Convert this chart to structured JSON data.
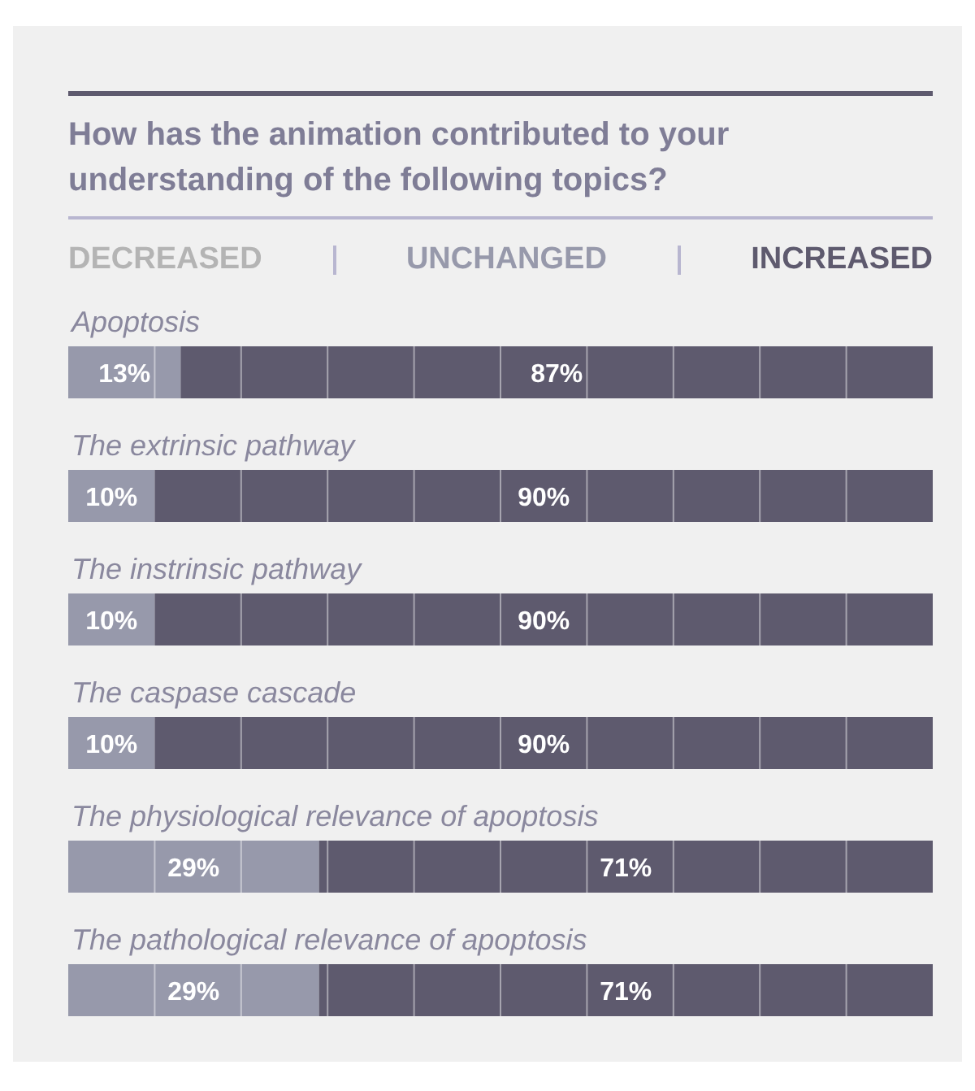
{
  "chart_data": {
    "type": "bar",
    "orientation": "horizontal",
    "stacked": true,
    "title": "How has the animation contributed to your understanding of the following topics?",
    "categories": [
      "Apoptosis",
      "The extrinsic pathway",
      "The instrinsic pathway",
      "The caspase cascade",
      "The physiological relevance of apoptosis",
      "The pathological relevance of apoptosis"
    ],
    "series": [
      {
        "name": "DECREASED",
        "color": "#b4b4b4",
        "values": [
          null,
          null,
          null,
          null,
          null,
          null
        ]
      },
      {
        "name": "UNCHANGED",
        "color": "#9799ab",
        "values": [
          13,
          10,
          10,
          10,
          29,
          29
        ],
        "value_labels": [
          "13%",
          "10%",
          "10%",
          "10%",
          "29%",
          "29%"
        ]
      },
      {
        "name": "INCREASED",
        "color": "#5e5a6e",
        "values": [
          87,
          90,
          90,
          90,
          71,
          71
        ],
        "value_labels": [
          "87%",
          "90%",
          "90%",
          "90%",
          "71%",
          "71%"
        ]
      }
    ],
    "tick_labels": "y"
  }
}
